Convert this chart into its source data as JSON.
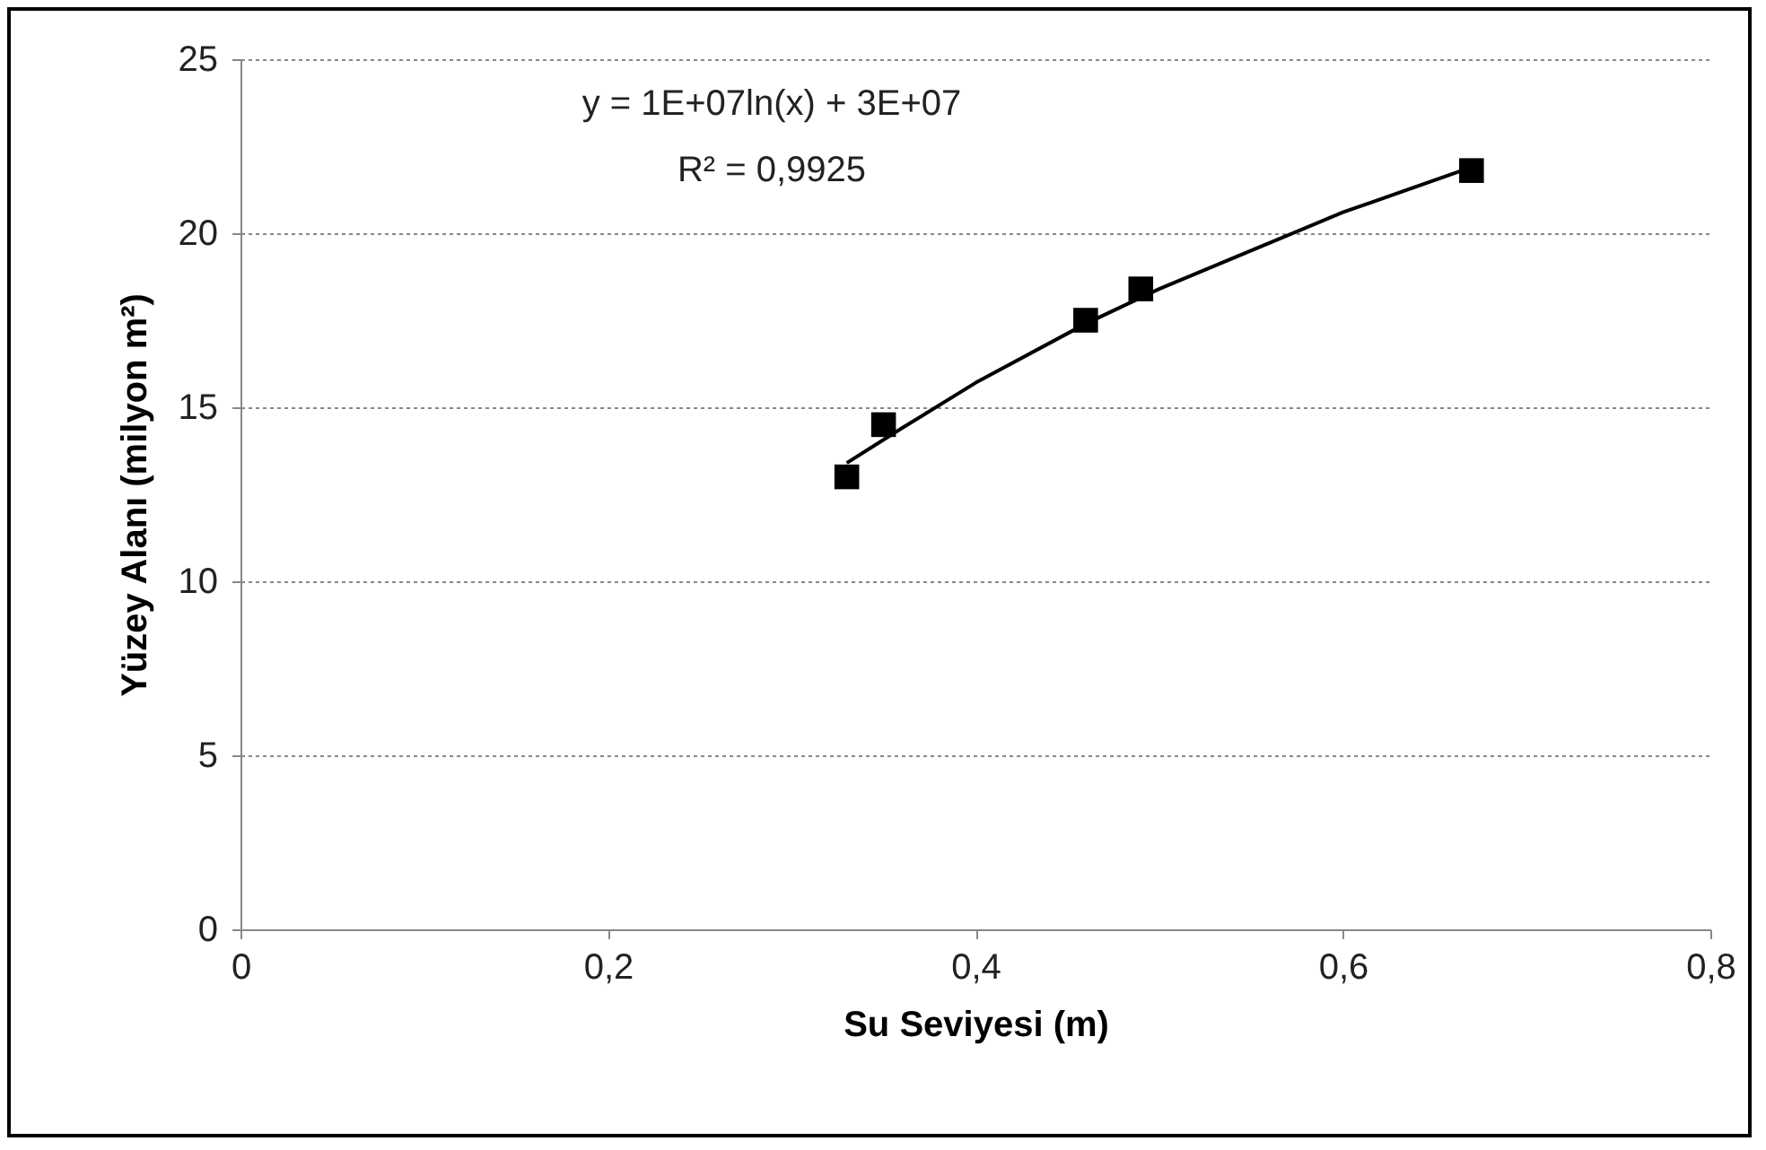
{
  "chart_data": {
    "type": "scatter",
    "xlabel": "Su Seviyesi (m)",
    "ylabel": "Yüzey Alanı (milyon m²)",
    "x": [
      0.33,
      0.35,
      0.46,
      0.49,
      0.67
    ],
    "series": [
      {
        "color": "#000000",
        "marker": "square",
        "values": [
          13.0,
          14.5,
          17.5,
          18.4,
          21.8
        ]
      },
      {
        "type": "line",
        "color": "#000000",
        "marker": "none",
        "line_style": "solid",
        "x": [
          0.33,
          0.36,
          0.4,
          0.46,
          0.5,
          0.55,
          0.6,
          0.67
        ],
        "values": [
          13.4,
          14.4,
          15.7,
          17.4,
          18.4,
          19.5,
          20.6,
          21.9
        ]
      }
    ],
    "xlim": [
      0,
      0.8
    ],
    "ylim": [
      0,
      25
    ],
    "xticks": [
      0,
      {
        "value": 0.2,
        "label": "0,2"
      },
      {
        "value": 0.4,
        "label": "0,4"
      },
      {
        "value": 0.6,
        "label": "0,6"
      },
      {
        "value": 0.8,
        "label": "0,8"
      }
    ],
    "yticks": [
      0,
      5,
      10,
      15,
      20,
      25
    ],
    "grid": "y",
    "annotations": [
      "y = 1E+07ln(x) + 3E+07",
      "R² = 0,9925"
    ]
  }
}
